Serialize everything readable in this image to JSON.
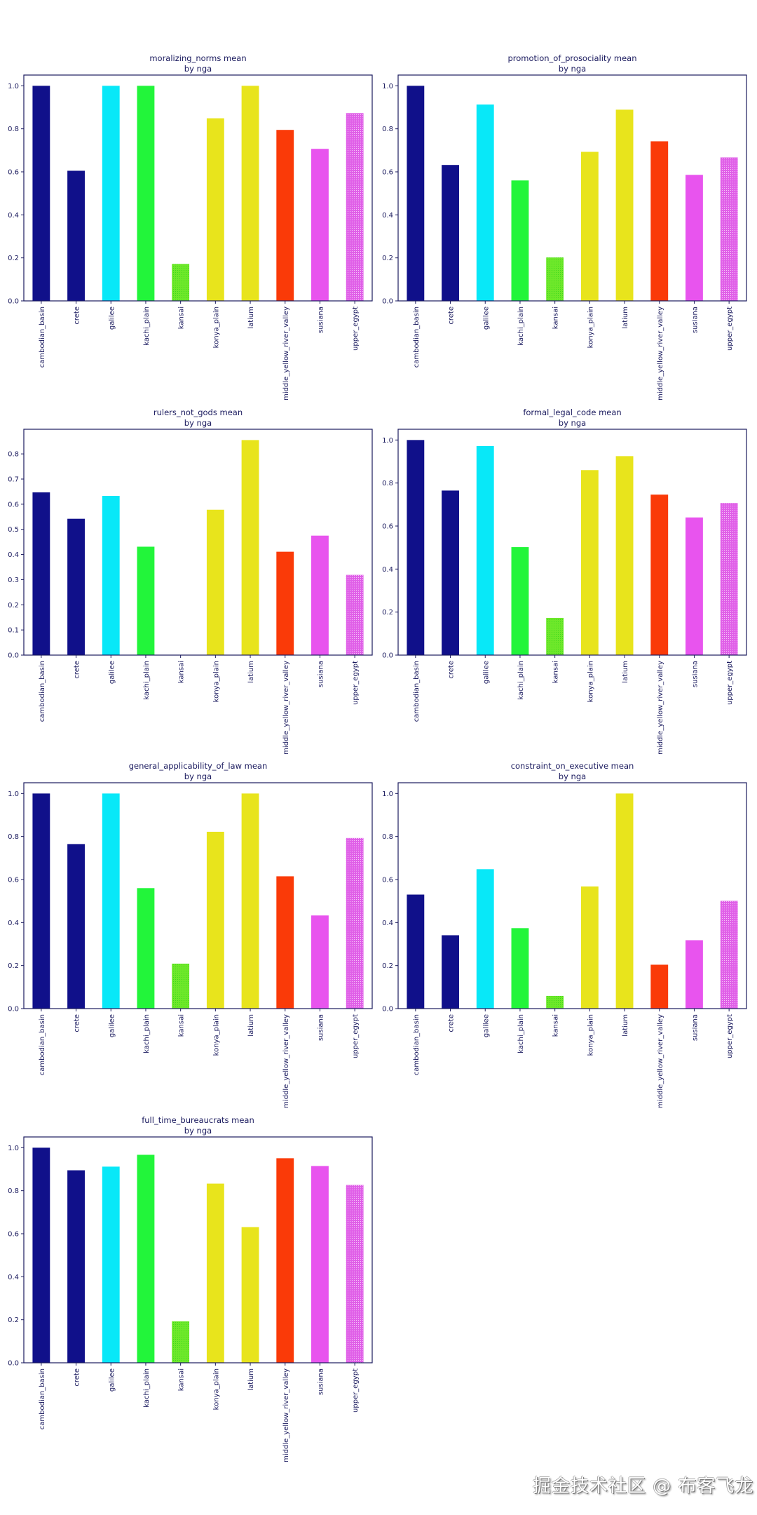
{
  "watermark": "掘金技术社区 @ 布客飞龙",
  "colors": {
    "text": "#1a1a5e",
    "frame": "#1a1a5e",
    "bars": [
      "#10108a",
      "#10108a",
      "#08e8f8",
      "#22f53a",
      "#6ee82a",
      "#e8e41c",
      "#e8e41c",
      "#fa3a08",
      "#e854ee",
      "#e060e8"
    ]
  },
  "chart_data": [
    {
      "type": "bar",
      "title": "moralizing_norms mean",
      "subtitle": "by nga",
      "xlabel": "",
      "ylabel": "",
      "categories": [
        "cambodian_basin",
        "crete",
        "galilee",
        "kachi_plain",
        "kansai",
        "konya_plain",
        "latium",
        "middle_yellow_river_valley",
        "susiana",
        "upper_egypt"
      ],
      "values": [
        1.0,
        0.605,
        1.0,
        1.0,
        0.172,
        0.849,
        1.0,
        0.795,
        0.707,
        0.873
      ],
      "ylim": [
        0,
        1.05
      ],
      "yticks": [
        0.0,
        0.2,
        0.4,
        0.6,
        0.8,
        1.0
      ],
      "ytick_labels": [
        "0.0",
        "0.2",
        "0.4",
        "0.6",
        "0.8",
        "1.0"
      ],
      "grid": false,
      "legend": "none"
    },
    {
      "type": "bar",
      "title": "promotion_of_prosociality mean",
      "subtitle": "by nga",
      "xlabel": "",
      "ylabel": "",
      "categories": [
        "cambodian_basin",
        "crete",
        "galilee",
        "kachi_plain",
        "kansai",
        "konya_plain",
        "latium",
        "middle_yellow_river_valley",
        "susiana",
        "upper_egypt"
      ],
      "values": [
        1.0,
        0.632,
        0.913,
        0.56,
        0.202,
        0.693,
        0.889,
        0.742,
        0.586,
        0.667
      ],
      "ylim": [
        0,
        1.05
      ],
      "yticks": [
        0.0,
        0.2,
        0.4,
        0.6,
        0.8,
        1.0
      ],
      "ytick_labels": [
        "0.0",
        "0.2",
        "0.4",
        "0.6",
        "0.8",
        "1.0"
      ],
      "grid": false,
      "legend": "none"
    },
    {
      "type": "bar",
      "title": "rulers_not_gods mean",
      "subtitle": "by nga",
      "xlabel": "",
      "ylabel": "",
      "categories": [
        "cambodian_basin",
        "crete",
        "galilee",
        "kachi_plain",
        "kansai",
        "konya_plain",
        "latium",
        "middle_yellow_river_valley",
        "susiana",
        "upper_egypt"
      ],
      "values": [
        0.647,
        0.542,
        0.633,
        0.431,
        0.0,
        0.578,
        0.855,
        0.411,
        0.475,
        0.319
      ],
      "ylim": [
        0,
        0.898
      ],
      "yticks": [
        0.0,
        0.1,
        0.2,
        0.3,
        0.4,
        0.5,
        0.6,
        0.7,
        0.8
      ],
      "ytick_labels": [
        "0.0",
        "0.1",
        "0.2",
        "0.3",
        "0.4",
        "0.5",
        "0.6",
        "0.7",
        "0.8"
      ],
      "grid": false,
      "legend": "none"
    },
    {
      "type": "bar",
      "title": "formal_legal_code mean",
      "subtitle": "by nga",
      "xlabel": "",
      "ylabel": "",
      "categories": [
        "cambodian_basin",
        "crete",
        "galilee",
        "kachi_plain",
        "kansai",
        "konya_plain",
        "latium",
        "middle_yellow_river_valley",
        "susiana",
        "upper_egypt"
      ],
      "values": [
        1.0,
        0.765,
        0.972,
        0.502,
        0.173,
        0.86,
        0.925,
        0.746,
        0.64,
        0.707
      ],
      "ylim": [
        0,
        1.05
      ],
      "yticks": [
        0.0,
        0.2,
        0.4,
        0.6,
        0.8,
        1.0
      ],
      "ytick_labels": [
        "0.0",
        "0.2",
        "0.4",
        "0.6",
        "0.8",
        "1.0"
      ],
      "grid": false,
      "legend": "none"
    },
    {
      "type": "bar",
      "title": "general_applicability_of_law mean",
      "subtitle": "by nga",
      "xlabel": "",
      "ylabel": "",
      "categories": [
        "cambodian_basin",
        "crete",
        "galilee",
        "kachi_plain",
        "kansai",
        "konya_plain",
        "latium",
        "middle_yellow_river_valley",
        "susiana",
        "upper_egypt"
      ],
      "values": [
        1.0,
        0.765,
        1.0,
        0.56,
        0.209,
        0.822,
        1.0,
        0.615,
        0.433,
        0.793
      ],
      "ylim": [
        0,
        1.05
      ],
      "yticks": [
        0.0,
        0.2,
        0.4,
        0.6,
        0.8,
        1.0
      ],
      "ytick_labels": [
        "0.0",
        "0.2",
        "0.4",
        "0.6",
        "0.8",
        "1.0"
      ],
      "grid": false,
      "legend": "none"
    },
    {
      "type": "bar",
      "title": "constraint_on_executive mean",
      "subtitle": "by nga",
      "xlabel": "",
      "ylabel": "",
      "categories": [
        "cambodian_basin",
        "crete",
        "galilee",
        "kachi_plain",
        "kansai",
        "konya_plain",
        "latium",
        "middle_yellow_river_valley",
        "susiana",
        "upper_egypt"
      ],
      "values": [
        0.53,
        0.341,
        0.648,
        0.374,
        0.059,
        0.568,
        1.0,
        0.204,
        0.318,
        0.501
      ],
      "ylim": [
        0,
        1.05
      ],
      "yticks": [
        0.0,
        0.2,
        0.4,
        0.6,
        0.8,
        1.0
      ],
      "ytick_labels": [
        "0.0",
        "0.2",
        "0.4",
        "0.6",
        "0.8",
        "1.0"
      ],
      "grid": false,
      "legend": "none"
    },
    {
      "type": "bar",
      "title": "full_time_bureaucrats mean",
      "subtitle": "by nga",
      "xlabel": "",
      "ylabel": "",
      "categories": [
        "cambodian_basin",
        "crete",
        "galilee",
        "kachi_plain",
        "kansai",
        "konya_plain",
        "latium",
        "middle_yellow_river_valley",
        "susiana",
        "upper_egypt"
      ],
      "values": [
        1.0,
        0.895,
        0.912,
        0.967,
        0.193,
        0.833,
        0.631,
        0.951,
        0.915,
        0.827
      ],
      "ylim": [
        0,
        1.05
      ],
      "yticks": [
        0.0,
        0.2,
        0.4,
        0.6,
        0.8,
        1.0
      ],
      "ytick_labels": [
        "0.0",
        "0.2",
        "0.4",
        "0.6",
        "0.8",
        "1.0"
      ],
      "grid": false,
      "legend": "none"
    }
  ]
}
